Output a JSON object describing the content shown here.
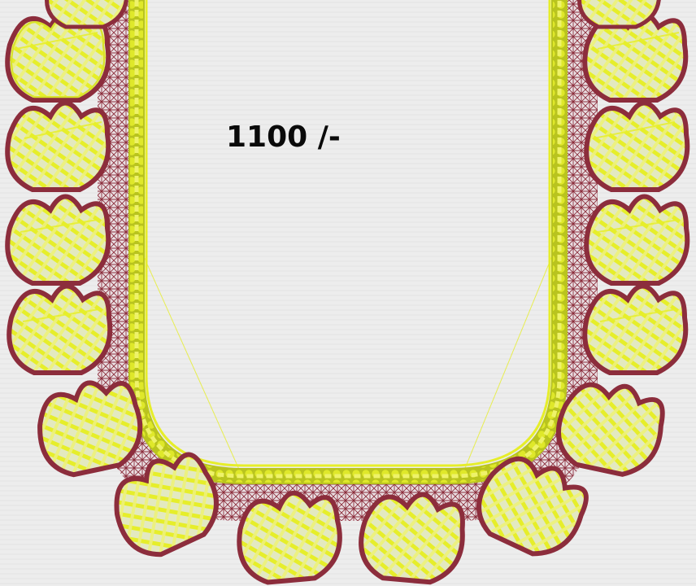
{
  "design": {
    "price_text": "1100 /-"
  },
  "palette": {
    "fabric": "#ededed",
    "thread_yellow": "#e6ee2a",
    "thread_yellow_light": "#f2f57a",
    "thread_maroon": "#8c2d3c",
    "thread_maroon_light": "#b84a52",
    "leaf_fill": "#dfe6b2"
  }
}
